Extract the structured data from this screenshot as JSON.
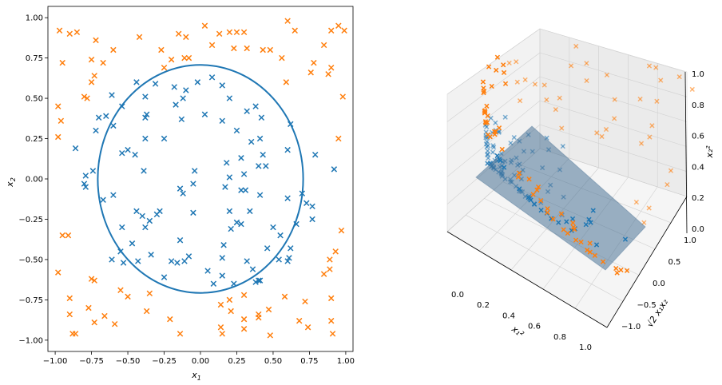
{
  "chart_data": [
    {
      "type": "scatter",
      "title": "",
      "xlabel": "x",
      "xlabel_sub": "1",
      "ylabel": "x",
      "ylabel_sub": "2",
      "xlim": [
        -1.05,
        1.05
      ],
      "ylim": [
        -1.07,
        1.07
      ],
      "xticks": [
        -1.0,
        -0.75,
        -0.5,
        -0.25,
        0.0,
        0.25,
        0.5,
        0.75,
        1.0
      ],
      "xtick_labels": [
        "−1.00",
        "−0.75",
        "−0.50",
        "−0.25",
        "0.00",
        "0.25",
        "0.50",
        "0.75",
        "1.00"
      ],
      "yticks": [
        -1.0,
        -0.75,
        -0.5,
        -0.25,
        0.0,
        0.25,
        0.5,
        0.75,
        1.0
      ],
      "ytick_labels": [
        "−1.00",
        "−0.75",
        "−0.50",
        "−0.25",
        "0.00",
        "0.25",
        "0.50",
        "0.75",
        "1.00"
      ],
      "grid": false,
      "marker": "x",
      "colors": {
        "inner": "#1f77b4",
        "outer": "#ff7f0e",
        "circle": "#1f77b4"
      },
      "circle": {
        "cx": 0.0,
        "cy": 0.0,
        "r": 0.707
      },
      "series": [
        {
          "points": [
            [
              0.08,
              0.63
            ],
            [
              -0.44,
              0.6
            ],
            [
              -0.02,
              0.6
            ],
            [
              -0.31,
              0.59
            ],
            [
              -0.18,
              0.57
            ],
            [
              0.15,
              0.58
            ],
            [
              -0.1,
              0.55
            ],
            [
              -0.61,
              0.52
            ],
            [
              -0.38,
              0.51
            ],
            [
              -0.12,
              0.5
            ],
            [
              0.2,
              0.5
            ],
            [
              0.38,
              0.45
            ],
            [
              -0.54,
              0.45
            ],
            [
              -0.17,
              0.46
            ],
            [
              0.32,
              0.42
            ],
            [
              -0.37,
              0.4
            ],
            [
              -0.7,
              0.38
            ],
            [
              -0.65,
              0.39
            ],
            [
              0.03,
              0.4
            ],
            [
              -0.38,
              0.38
            ],
            [
              0.42,
              0.38
            ],
            [
              -0.6,
              0.33
            ],
            [
              -0.13,
              0.37
            ],
            [
              0.15,
              0.36
            ],
            [
              -0.72,
              0.3
            ],
            [
              0.62,
              0.34
            ],
            [
              0.25,
              0.3
            ],
            [
              0.35,
              0.23
            ],
            [
              -0.38,
              0.25
            ],
            [
              -0.86,
              0.19
            ],
            [
              0.41,
              0.25
            ],
            [
              -0.25,
              0.25
            ],
            [
              0.6,
              0.18
            ],
            [
              -0.54,
              0.16
            ],
            [
              -0.5,
              0.18
            ],
            [
              -0.45,
              0.15
            ],
            [
              0.28,
              0.13
            ],
            [
              0.43,
              0.15
            ],
            [
              0.79,
              0.15
            ],
            [
              -0.39,
              0.05
            ],
            [
              0.18,
              0.1
            ],
            [
              0.4,
              0.08
            ],
            [
              -0.14,
              -0.06
            ],
            [
              -0.74,
              0.05
            ],
            [
              -0.79,
              0.02
            ],
            [
              0.3,
              0.03
            ],
            [
              -0.04,
              0.05
            ],
            [
              0.45,
              0.08
            ],
            [
              0.2,
              0.01
            ],
            [
              0.92,
              0.06
            ],
            [
              -0.8,
              -0.03
            ],
            [
              -0.05,
              -0.03
            ],
            [
              -0.79,
              -0.05
            ],
            [
              0.28,
              -0.07
            ],
            [
              0.31,
              -0.07
            ],
            [
              0.17,
              -0.05
            ],
            [
              -0.6,
              -0.1
            ],
            [
              0.41,
              -0.1
            ],
            [
              -0.67,
              -0.13
            ],
            [
              0.7,
              -0.09
            ],
            [
              -0.12,
              -0.09
            ],
            [
              0.6,
              -0.12
            ],
            [
              -0.28,
              -0.2
            ],
            [
              -0.44,
              -0.2
            ],
            [
              -0.3,
              -0.22
            ],
            [
              0.34,
              -0.2
            ],
            [
              0.2,
              -0.2
            ],
            [
              -0.05,
              -0.21
            ],
            [
              0.73,
              -0.15
            ],
            [
              0.77,
              -0.17
            ],
            [
              -0.4,
              -0.23
            ],
            [
              -0.35,
              -0.26
            ],
            [
              0.28,
              -0.28
            ],
            [
              0.25,
              -0.27
            ],
            [
              -0.54,
              -0.3
            ],
            [
              0.5,
              -0.3
            ],
            [
              0.77,
              -0.25
            ],
            [
              -0.38,
              -0.3
            ],
            [
              0.21,
              -0.31
            ],
            [
              0.66,
              -0.28
            ],
            [
              -0.47,
              -0.4
            ],
            [
              -0.14,
              -0.38
            ],
            [
              0.55,
              -0.35
            ],
            [
              0.16,
              -0.41
            ],
            [
              0.46,
              -0.43
            ],
            [
              -0.55,
              -0.45
            ],
            [
              0.62,
              -0.43
            ],
            [
              -0.61,
              -0.5
            ],
            [
              -0.34,
              -0.47
            ],
            [
              0.61,
              -0.49
            ],
            [
              0.54,
              -0.5
            ],
            [
              -0.08,
              -0.48
            ],
            [
              -0.11,
              -0.51
            ],
            [
              -0.43,
              -0.51
            ],
            [
              -0.53,
              -0.52
            ],
            [
              -0.16,
              -0.52
            ],
            [
              -0.2,
              -0.51
            ],
            [
              0.32,
              -0.51
            ],
            [
              0.15,
              -0.49
            ],
            [
              0.6,
              -0.51
            ],
            [
              0.36,
              -0.56
            ],
            [
              0.05,
              -0.57
            ],
            [
              -0.25,
              -0.61
            ],
            [
              0.15,
              -0.6
            ],
            [
              0.41,
              -0.63
            ],
            [
              0.09,
              -0.65
            ],
            [
              0.23,
              -0.65
            ],
            [
              0.38,
              -0.64
            ],
            [
              0.4,
              -0.63
            ]
          ]
        },
        {
          "points": [
            [
              -0.97,
              0.92
            ],
            [
              -0.9,
              0.9
            ],
            [
              -0.85,
              0.91
            ],
            [
              0.03,
              0.95
            ],
            [
              -0.15,
              0.9
            ],
            [
              0.25,
              0.91
            ],
            [
              -0.1,
              0.88
            ],
            [
              0.13,
              0.9
            ],
            [
              0.3,
              0.91
            ],
            [
              -0.42,
              0.88
            ],
            [
              0.2,
              0.91
            ],
            [
              0.6,
              0.98
            ],
            [
              0.95,
              0.95
            ],
            [
              0.65,
              0.92
            ],
            [
              0.9,
              0.92
            ],
            [
              0.99,
              0.92
            ],
            [
              -0.72,
              0.86
            ],
            [
              -0.6,
              0.8
            ],
            [
              0.23,
              0.81
            ],
            [
              0.32,
              0.81
            ],
            [
              0.43,
              0.8
            ],
            [
              0.48,
              0.8
            ],
            [
              0.08,
              0.83
            ],
            [
              -0.27,
              0.8
            ],
            [
              -0.95,
              0.72
            ],
            [
              -0.75,
              0.74
            ],
            [
              -0.67,
              0.72
            ],
            [
              -0.2,
              0.74
            ],
            [
              -0.11,
              0.75
            ],
            [
              -0.25,
              0.69
            ],
            [
              0.56,
              0.75
            ],
            [
              0.78,
              0.72
            ],
            [
              0.85,
              0.83
            ],
            [
              -0.08,
              0.75
            ],
            [
              0.76,
              0.66
            ],
            [
              0.9,
              0.69
            ],
            [
              -0.73,
              0.64
            ],
            [
              -0.75,
              0.6
            ],
            [
              0.59,
              0.6
            ],
            [
              0.88,
              0.65
            ],
            [
              -0.8,
              0.51
            ],
            [
              -0.78,
              0.5
            ],
            [
              0.98,
              0.51
            ],
            [
              -0.98,
              0.45
            ],
            [
              -0.96,
              0.36
            ],
            [
              -0.98,
              0.26
            ],
            [
              0.95,
              0.25
            ],
            [
              -0.95,
              -0.35
            ],
            [
              -0.91,
              -0.35
            ],
            [
              0.97,
              -0.32
            ],
            [
              0.93,
              -0.45
            ],
            [
              0.89,
              -0.5
            ],
            [
              -0.98,
              -0.58
            ],
            [
              0.89,
              -0.56
            ],
            [
              0.85,
              -0.59
            ],
            [
              -0.75,
              -0.62
            ],
            [
              -0.73,
              -0.63
            ],
            [
              -0.9,
              -0.74
            ],
            [
              -0.55,
              -0.69
            ],
            [
              -0.5,
              -0.73
            ],
            [
              -0.35,
              -0.71
            ],
            [
              0.3,
              -0.72
            ],
            [
              0.58,
              -0.73
            ],
            [
              0.72,
              -0.76
            ],
            [
              0.14,
              -0.78
            ],
            [
              0.2,
              -0.75
            ],
            [
              0.9,
              -0.74
            ],
            [
              -0.77,
              -0.8
            ],
            [
              -0.9,
              -0.84
            ],
            [
              -0.37,
              -0.82
            ],
            [
              0.21,
              -0.82
            ],
            [
              0.4,
              -0.84
            ],
            [
              0.47,
              -0.81
            ],
            [
              -0.66,
              -0.85
            ],
            [
              -0.21,
              -0.87
            ],
            [
              0.3,
              -0.87
            ],
            [
              0.4,
              -0.86
            ],
            [
              0.68,
              -0.88
            ],
            [
              0.9,
              -0.88
            ],
            [
              -0.73,
              -0.89
            ],
            [
              0.14,
              -0.92
            ],
            [
              0.74,
              -0.92
            ],
            [
              -0.88,
              -0.96
            ],
            [
              -0.86,
              -0.96
            ],
            [
              -0.14,
              -0.96
            ],
            [
              0.15,
              -0.96
            ],
            [
              0.48,
              -0.97
            ],
            [
              0.91,
              -0.96
            ],
            [
              -0.59,
              -0.9
            ],
            [
              0.3,
              -0.93
            ]
          ]
        }
      ]
    },
    {
      "type": "scatter",
      "title": "",
      "projection": "3d",
      "xlabel": "x₁²",
      "ylabel": "√2 x₁x₂",
      "zlabel": "x₂²",
      "xtick_labels": [
        "0.0",
        "0.2",
        "0.4",
        "0.6",
        "0.8",
        "1.0"
      ],
      "ytick_labels": [
        "−1.0",
        "−0.5",
        "0.0",
        "0.5",
        "1.0"
      ],
      "ztick_labels": [
        "0.0",
        "0.2",
        "0.4",
        "0.6",
        "0.8",
        "1.0"
      ],
      "plane": "x₁² + x₂² = 0.5",
      "colors": {
        "inner": "#1f77b4",
        "outer": "#ff7f0e",
        "plane": "#4a7296",
        "pane": "#f2f2f2"
      }
    }
  ]
}
